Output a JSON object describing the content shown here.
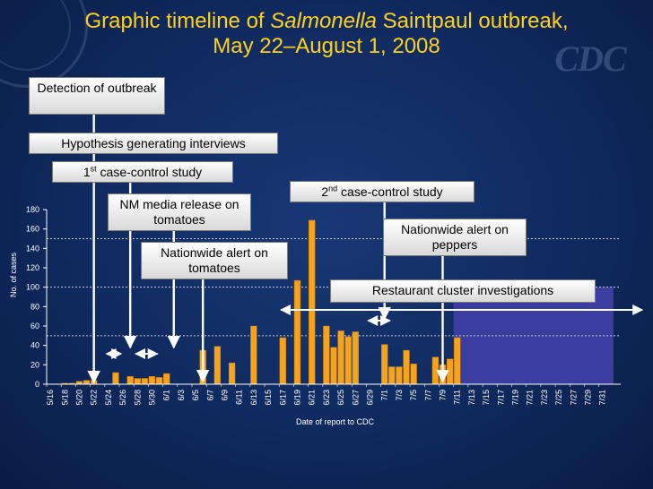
{
  "header": {
    "title_line1_before": "Graphic timeline of ",
    "title_line1_italic": "Salmonella",
    "title_line1_after": " Saintpaul outbreak,",
    "title_line2": "May 22–August 1, 2008"
  },
  "logo_text": "CDC",
  "footnote": "",
  "annotations": {
    "detection": "Detection of outbreak",
    "hypothesis": "Hypothesis generating interviews",
    "cc1_pre": "1",
    "cc1_sup": "st",
    "cc1_post": " case-control study",
    "nm_media": "NM media release on tomatoes",
    "cc2_pre": "2",
    "cc2_sup": "nd",
    "cc2_post": " case-control study",
    "alert_tomatoes": "Nationwide alert on tomatoes",
    "alert_peppers": "Nationwide alert on peppers",
    "restaurant": "Restaurant cluster investigations"
  },
  "colors": {
    "bar": "#f5a21c",
    "shaded_region": "#3b3e9e",
    "arrow": "#ffffff",
    "title": "#ffd21a"
  },
  "chart_data": {
    "type": "bar",
    "xlabel": "Date of report to CDC",
    "ylabel": "No. of cases",
    "ylim": [
      0,
      180
    ],
    "yticks": [
      0,
      20,
      40,
      60,
      80,
      100,
      120,
      140,
      160,
      180
    ],
    "dashed_gridlines": [
      50,
      100,
      150
    ],
    "x_tick_labels": [
      "5/16",
      "5/18",
      "5/20",
      "5/22",
      "5/24",
      "5/26",
      "5/28",
      "5/30",
      "6/1",
      "6/3",
      "6/5",
      "6/7",
      "6/9",
      "6/11",
      "6/13",
      "6/15",
      "6/17",
      "6/19",
      "6/21",
      "6/23",
      "6/25",
      "6/27",
      "6/29",
      "7/1",
      "7/3",
      "7/5",
      "7/7",
      "7/9",
      "7/11",
      "7/13",
      "7/15",
      "7/17",
      "7/19",
      "7/21",
      "7/23",
      "7/25",
      "7/27",
      "7/29",
      "7/31"
    ],
    "start_date": "5/16",
    "values": [
      0,
      0,
      1,
      1,
      3,
      4,
      4,
      0,
      0,
      12,
      0,
      8,
      6,
      6,
      8,
      7,
      11,
      0,
      0,
      0,
      0,
      35,
      0,
      39,
      0,
      22,
      0,
      0,
      60,
      0,
      0,
      0,
      48,
      0,
      107,
      0,
      169,
      0,
      60,
      38,
      55,
      49,
      54,
      0,
      0,
      0,
      41,
      18,
      18,
      35,
      21,
      0,
      0,
      28,
      20,
      26,
      48
    ],
    "shaded_region": [
      "7/11",
      "7/31"
    ],
    "intervals": [
      {
        "from": "5/24",
        "to": "5/26"
      },
      {
        "from": "5/28",
        "to": "5/31"
      },
      {
        "from": "6/17",
        "to": "7/31"
      },
      {
        "from": "6/29",
        "to": "7/2"
      }
    ],
    "event_arrows": [
      "5/22",
      "5/27",
      "6/2",
      "6/6",
      "7/1",
      "7/9"
    ]
  }
}
